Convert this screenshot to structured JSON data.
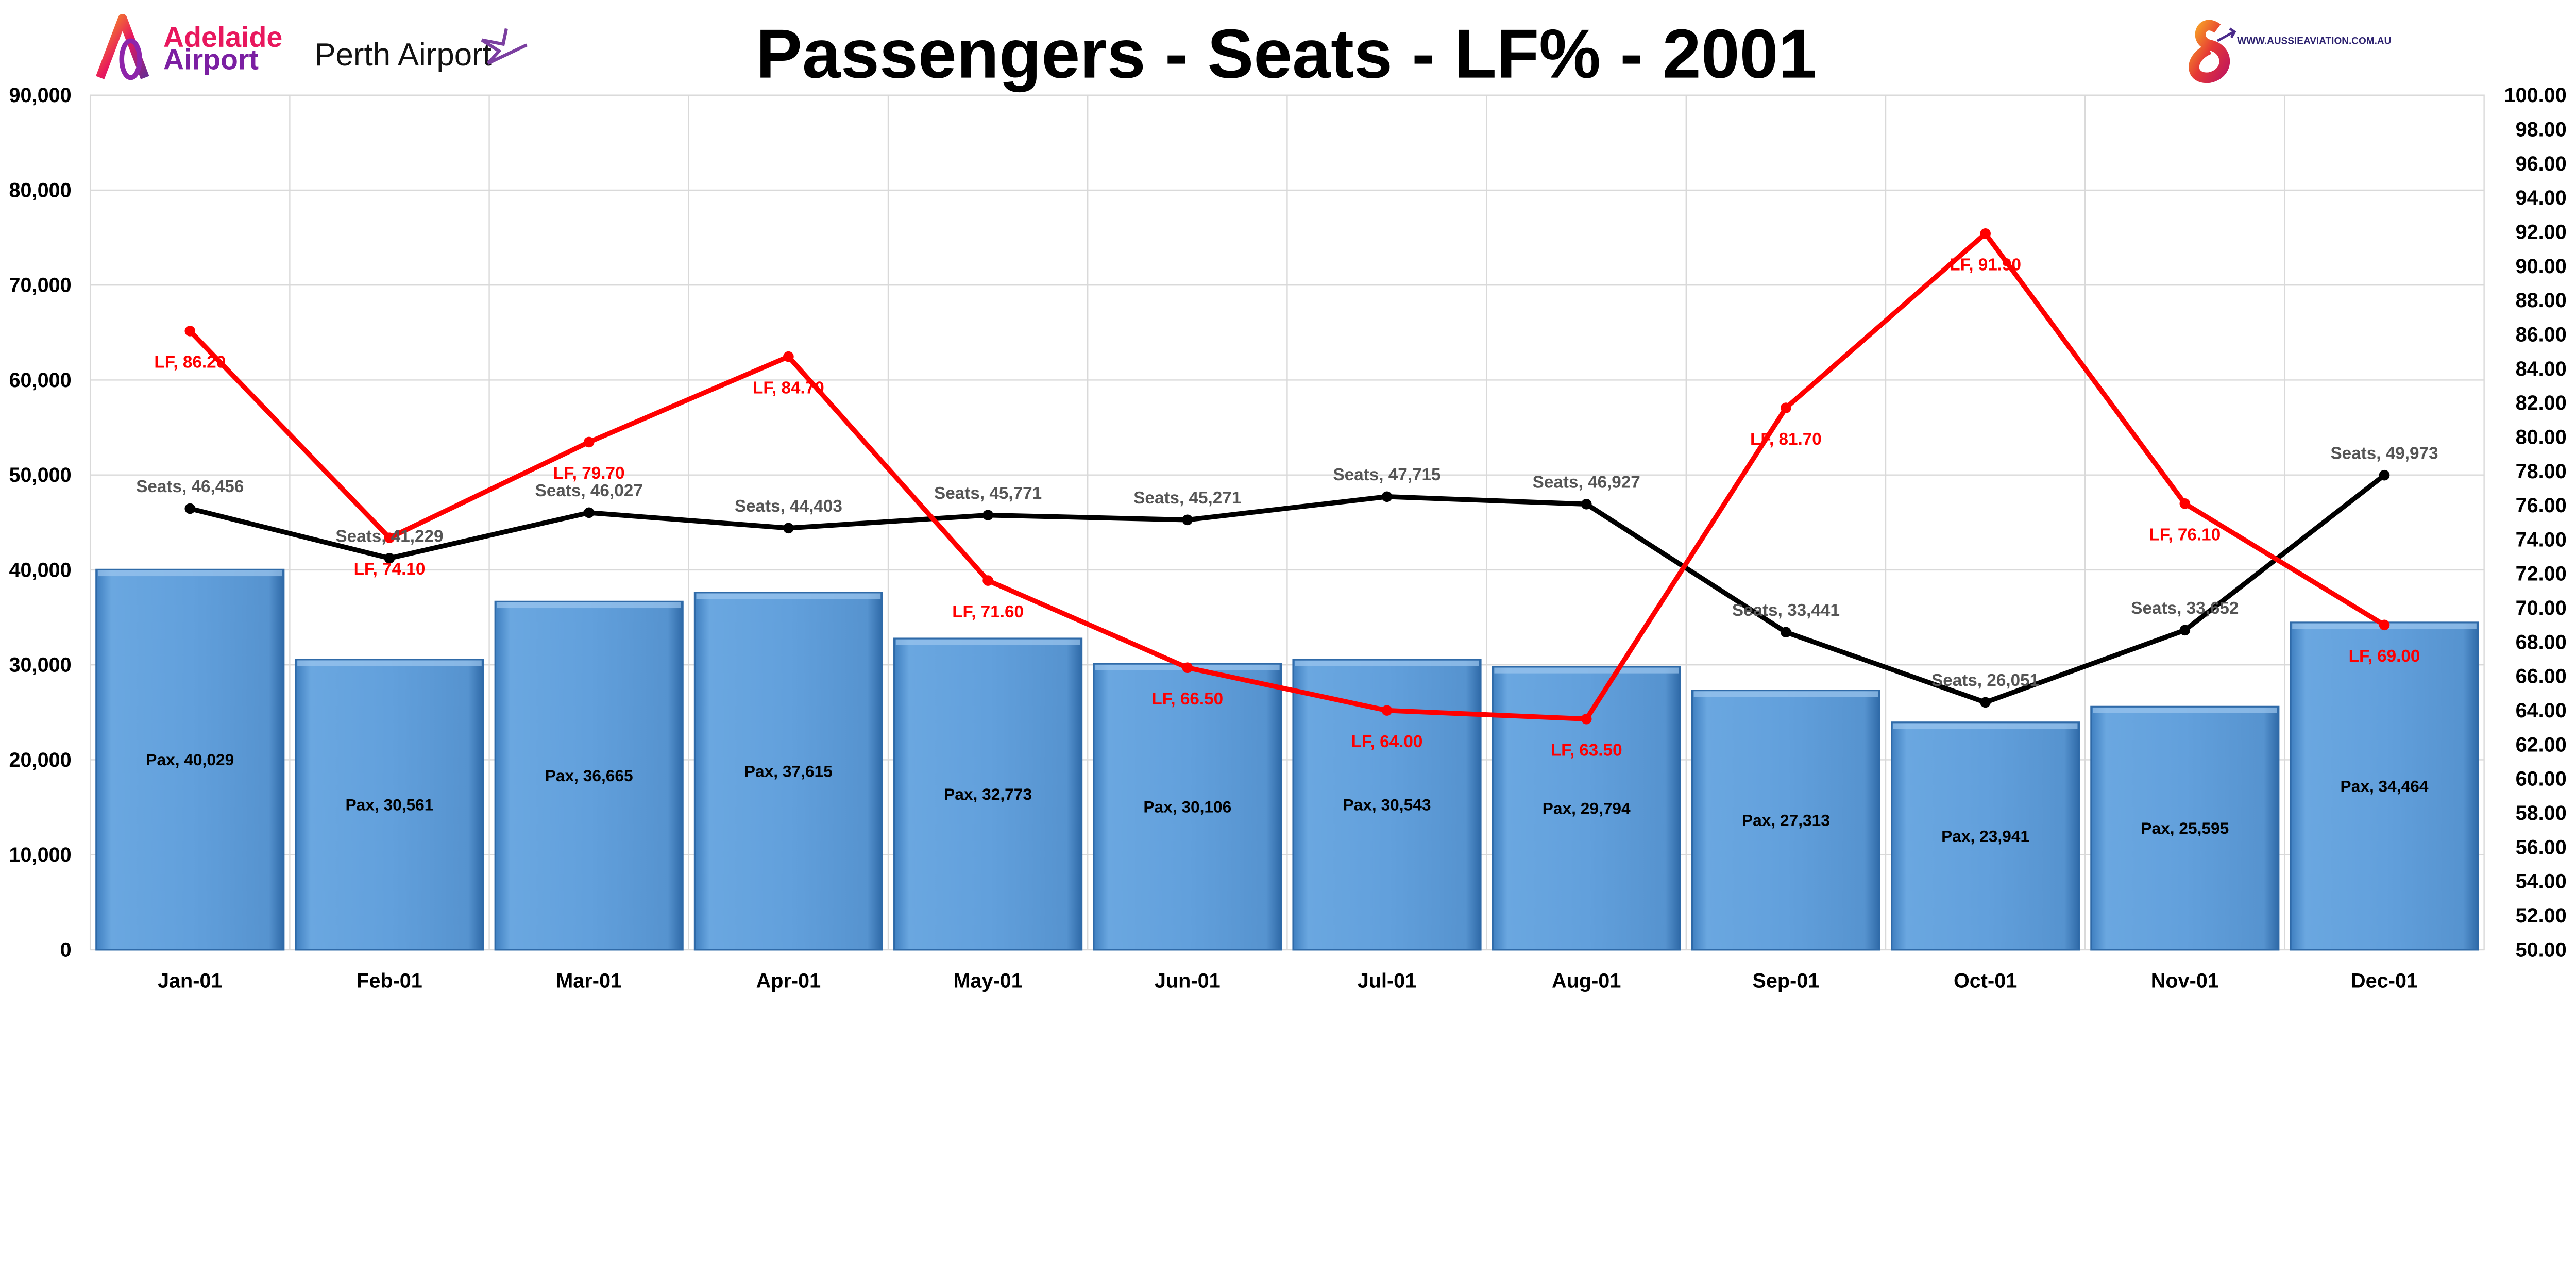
{
  "logos": {
    "adelaide": {
      "line1": "Adelaide",
      "line2": "Airport"
    },
    "perth": "Perth Airport",
    "aussie": "WWW.AUSSIEAVIATION.COM.AU"
  },
  "chart_data": {
    "type": "bar+line",
    "title": "Passengers - Seats - LF% - 2001",
    "categories": [
      "Jan-01",
      "Feb-01",
      "Mar-01",
      "Apr-01",
      "May-01",
      "Jun-01",
      "Jul-01",
      "Aug-01",
      "Sep-01",
      "Oct-01",
      "Nov-01",
      "Dec-01"
    ],
    "series": [
      {
        "name": "Pax",
        "type": "bar",
        "axis": "left",
        "color": "#5b9bd5",
        "values": [
          40029,
          30561,
          36665,
          37615,
          32773,
          30106,
          30543,
          29794,
          27313,
          23941,
          25595,
          34464
        ],
        "labels": [
          "Pax, 40,029",
          "Pax, 30,561",
          "Pax, 36,665",
          "Pax, 37,615",
          "Pax, 32,773",
          "Pax, 30,106",
          "Pax, 30,543",
          "Pax, 29,794",
          "Pax, 27,313",
          "Pax, 23,941",
          "Pax, 25,595",
          "Pax, 34,464"
        ]
      },
      {
        "name": "Seats",
        "type": "line",
        "axis": "left",
        "color": "#000000",
        "values": [
          46456,
          41229,
          46027,
          44403,
          45771,
          45271,
          47715,
          46927,
          33441,
          26051,
          33652,
          49973
        ],
        "labels": [
          "Seats, 46,456",
          "Seats, 41,229",
          "Seats, 46,027",
          "Seats, 44,403",
          "Seats, 45,771",
          "Seats, 45,271",
          "Seats, 47,715",
          "Seats, 46,927",
          "Seats, 33,441",
          "Seats, 26,051",
          "Seats, 33,652",
          "Seats, 49,973"
        ]
      },
      {
        "name": "LF",
        "type": "line",
        "axis": "right",
        "color": "#ff0000",
        "values": [
          86.2,
          74.1,
          79.7,
          84.7,
          71.6,
          66.5,
          64.0,
          63.5,
          81.7,
          91.9,
          76.1,
          69.0
        ],
        "labels": [
          "LF, 86.20",
          "LF, 74.10",
          "LF, 79.70",
          "LF, 84.70",
          "LF, 71.60",
          "LF, 66.50",
          "LF, 64.00",
          "LF, 63.50",
          "LF, 81.70",
          "LF, 91.90",
          "LF, 76.10",
          "LF, 69.00"
        ]
      }
    ],
    "left_axis": {
      "min": 0,
      "max": 90000,
      "step": 10000,
      "ticks": [
        "0",
        "10,000",
        "20,000",
        "30,000",
        "40,000",
        "50,000",
        "60,000",
        "70,000",
        "80,000",
        "90,000"
      ]
    },
    "right_axis": {
      "min": 50,
      "max": 100,
      "step": 2,
      "ticks": [
        "50.00",
        "52.00",
        "54.00",
        "56.00",
        "58.00",
        "60.00",
        "62.00",
        "64.00",
        "66.00",
        "68.00",
        "70.00",
        "72.00",
        "74.00",
        "76.00",
        "78.00",
        "80.00",
        "82.00",
        "84.00",
        "86.00",
        "88.00",
        "90.00",
        "92.00",
        "94.00",
        "96.00",
        "98.00",
        "100.00"
      ]
    },
    "grid": true,
    "legend": "none"
  }
}
